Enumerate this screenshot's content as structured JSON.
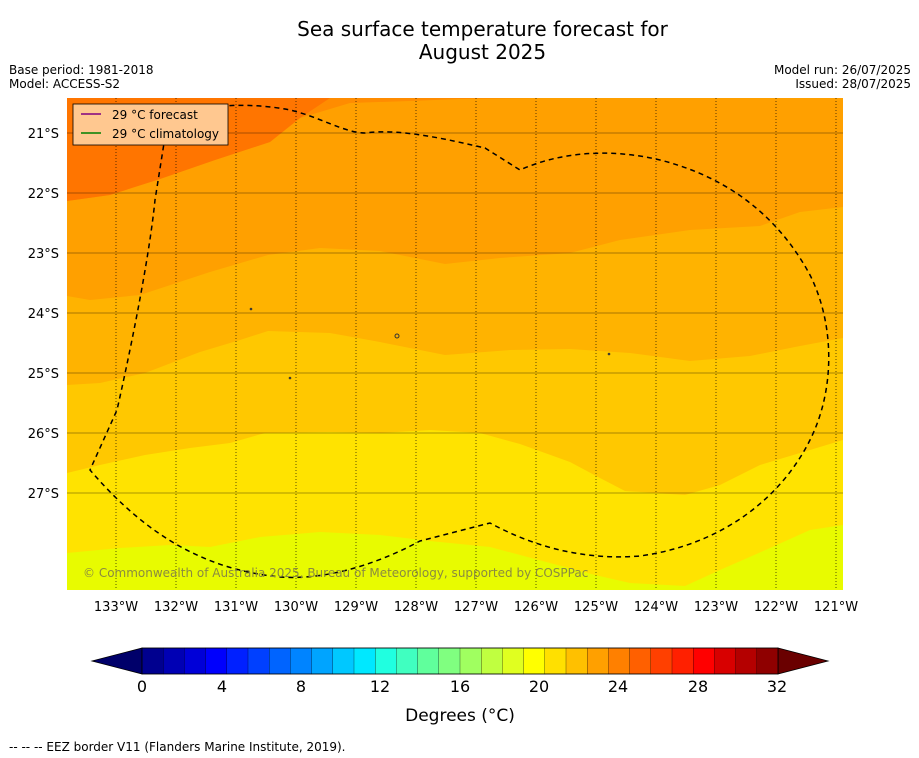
{
  "header": {
    "title_line1": "Sea surface temperature forecast for",
    "title_line2": "August 2025",
    "base_period": "Base period: 1981-2018",
    "model": "Model: ACCESS-S2",
    "model_run": "Model run: 26/07/2025",
    "issued": "Issued: 28/07/2025"
  },
  "map": {
    "lat_labels": [
      "21°S",
      "22°S",
      "23°S",
      "24°S",
      "25°S",
      "26°S",
      "27°S"
    ],
    "lon_labels": [
      "133°W",
      "132°W",
      "131°W",
      "130°W",
      "129°W",
      "128°W",
      "127°W",
      "126°W",
      "125°W",
      "124°W",
      "123°W",
      "122°W",
      "121°W"
    ],
    "legend": [
      {
        "label": "29 °C  forecast",
        "color": "#800080"
      },
      {
        "label": "29 °C  climatology",
        "color": "#008000"
      }
    ],
    "copyright": "© Commonwealth of Australia 2025, Bureau of Meteorology, supported by COSPPac",
    "eez_style": "dashed black"
  },
  "colorbar": {
    "tick_labels": [
      "0",
      "4",
      "8",
      "12",
      "16",
      "20",
      "24",
      "28",
      "32"
    ],
    "label": "Degrees (°C)",
    "colors": [
      "#00008f",
      "#0000b4",
      "#0000d8",
      "#0000fd",
      "#0020ff",
      "#0040ff",
      "#0064ff",
      "#0084ff",
      "#00a4ff",
      "#00c8ff",
      "#00e8ff",
      "#20ffe0",
      "#40ffc0",
      "#60ff9c",
      "#80ff80",
      "#a0ff60",
      "#c0ff40",
      "#e0ff20",
      "#ffff00",
      "#ffe000",
      "#ffc000",
      "#ffa000",
      "#ff8000",
      "#ff6000",
      "#ff4000",
      "#ff2000",
      "#ff0000",
      "#d80000",
      "#b40000",
      "#8f0000"
    ]
  },
  "footer": "--  --  -- EEZ border V11 (Flanders Marine Institute, 2019)."
}
